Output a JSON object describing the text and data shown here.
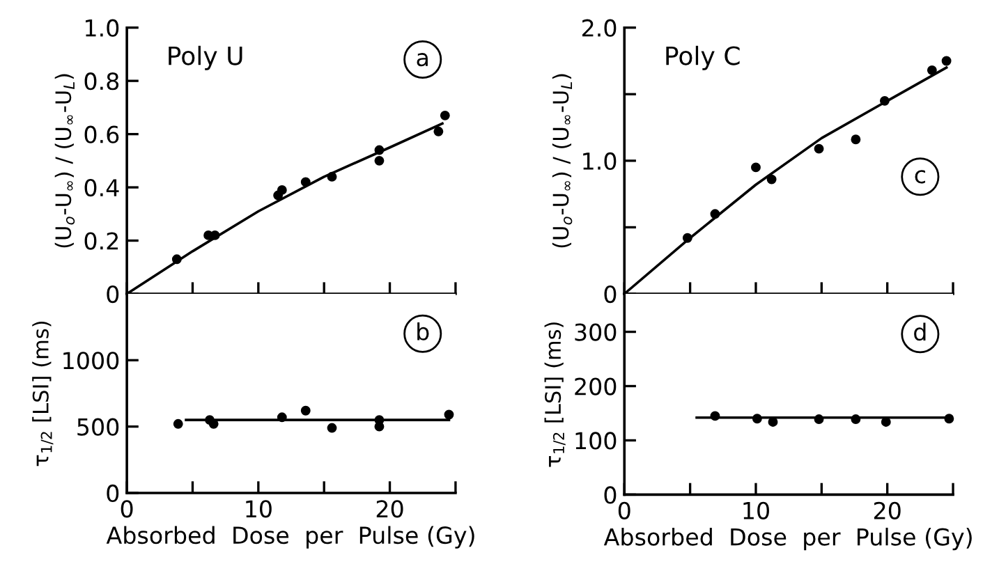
{
  "chart_data": [
    {
      "type": "scatter",
      "ylabel": "(U$_{o}$-U$_{∞}$) / (U$_{∞}$-U$_{L}$)",
      "annotations": [
        "Poly U",
        "a"
      ],
      "xlim": [
        0,
        25
      ],
      "xticks": [
        0,
        {
          "value": 5,
          "label": null
        },
        10,
        {
          "value": 15,
          "label": null
        },
        20,
        {
          "value": 25,
          "label": null
        }
      ],
      "ylim": [
        0,
        1.0
      ],
      "yticks": [
        0,
        0.2,
        0.4,
        0.6,
        0.8,
        {
          "value": 1.0,
          "label": "1.0"
        }
      ],
      "tick_labels": "y",
      "series": [
        {
          "marker": "circle",
          "color": "#000000",
          "x": [
            3.8,
            6.2,
            6.7,
            11.5,
            11.8,
            13.6,
            15.6,
            19.2,
            19.2,
            23.7,
            24.2
          ],
          "values": [
            0.13,
            0.22,
            0.22,
            0.37,
            0.39,
            0.42,
            0.44,
            0.54,
            0.5,
            0.61,
            0.67
          ]
        },
        {
          "type": "line",
          "color": "#000000",
          "x": [
            0,
            5,
            10,
            15,
            20,
            24
          ],
          "values": [
            0,
            0.16,
            0.31,
            0.44,
            0.55,
            0.64
          ]
        }
      ]
    },
    {
      "type": "scatter",
      "xlabel": "Absorbed  Dose  per  Pulse (Gy)",
      "ylabel": "τ$_{1/2}$ [LSI] (ms)",
      "annotations": [
        "b"
      ],
      "xlim": [
        0,
        25
      ],
      "xticks": [
        0,
        {
          "value": 5,
          "label": null
        },
        10,
        {
          "value": 15,
          "label": null
        },
        20,
        {
          "value": 25,
          "label": null
        }
      ],
      "ylim": [
        0,
        1500
      ],
      "yticks": [
        0,
        500,
        1000
      ],
      "series": [
        {
          "marker": "circle",
          "color": "#000000",
          "x": [
            3.9,
            6.3,
            6.6,
            11.8,
            13.6,
            15.6,
            19.2,
            19.2,
            24.5
          ],
          "values": [
            520,
            550,
            520,
            570,
            620,
            490,
            550,
            500,
            590
          ]
        },
        {
          "type": "line",
          "color": "#000000",
          "x": [
            4.5,
            24.5
          ],
          "values": [
            550,
            550
          ]
        }
      ]
    },
    {
      "type": "scatter",
      "ylabel": "(U$_{o}$-U$_{∞}$) / (U$_{∞}$-U$_{L}$)",
      "annotations": [
        "Poly C",
        "c"
      ],
      "xlim": [
        0,
        25
      ],
      "xticks": [
        0,
        {
          "value": 5,
          "label": null
        },
        10,
        {
          "value": 15,
          "label": null
        },
        20,
        {
          "value": 25,
          "label": null
        }
      ],
      "ylim": [
        0,
        2.0
      ],
      "yticks": [
        0,
        {
          "value": 0.5,
          "label": null
        },
        {
          "value": 1.0,
          "label": "1.0"
        },
        {
          "value": 1.5,
          "label": null
        },
        {
          "value": 2.0,
          "label": "2.0"
        }
      ],
      "tick_labels": "y",
      "series": [
        {
          "marker": "circle",
          "color": "#000000",
          "x": [
            4.8,
            6.9,
            10.0,
            11.2,
            14.8,
            17.6,
            19.8,
            23.4,
            24.5
          ],
          "values": [
            0.42,
            0.6,
            0.95,
            0.86,
            1.09,
            1.16,
            1.45,
            1.68,
            1.75
          ]
        },
        {
          "type": "line",
          "color": "#000000",
          "x": [
            0,
            5,
            10,
            15,
            20,
            24.5
          ],
          "values": [
            0,
            0.42,
            0.82,
            1.17,
            1.45,
            1.7
          ]
        }
      ]
    },
    {
      "type": "scatter",
      "xlabel": "Absorbed  Dose  per  Pulse (Gy)",
      "ylabel": "τ$_{1/2}$ [LSI] (ms)",
      "annotations": [
        "d"
      ],
      "xlim": [
        0,
        25
      ],
      "xticks": [
        0,
        {
          "value": 5,
          "label": null
        },
        10,
        {
          "value": 15,
          "label": null
        },
        20,
        {
          "value": 25,
          "label": null
        }
      ],
      "ylim": [
        0,
        370
      ],
      "yticks": [
        0,
        100,
        200,
        300
      ],
      "series": [
        {
          "marker": "circle",
          "color": "#000000",
          "x": [
            6.9,
            10.1,
            11.3,
            14.8,
            17.6,
            19.9,
            24.7
          ],
          "values": [
            145,
            140,
            134,
            139,
            139,
            134,
            140
          ]
        },
        {
          "type": "line",
          "color": "#000000",
          "x": [
            5.5,
            24.5
          ],
          "values": [
            142,
            142
          ]
        }
      ]
    }
  ]
}
